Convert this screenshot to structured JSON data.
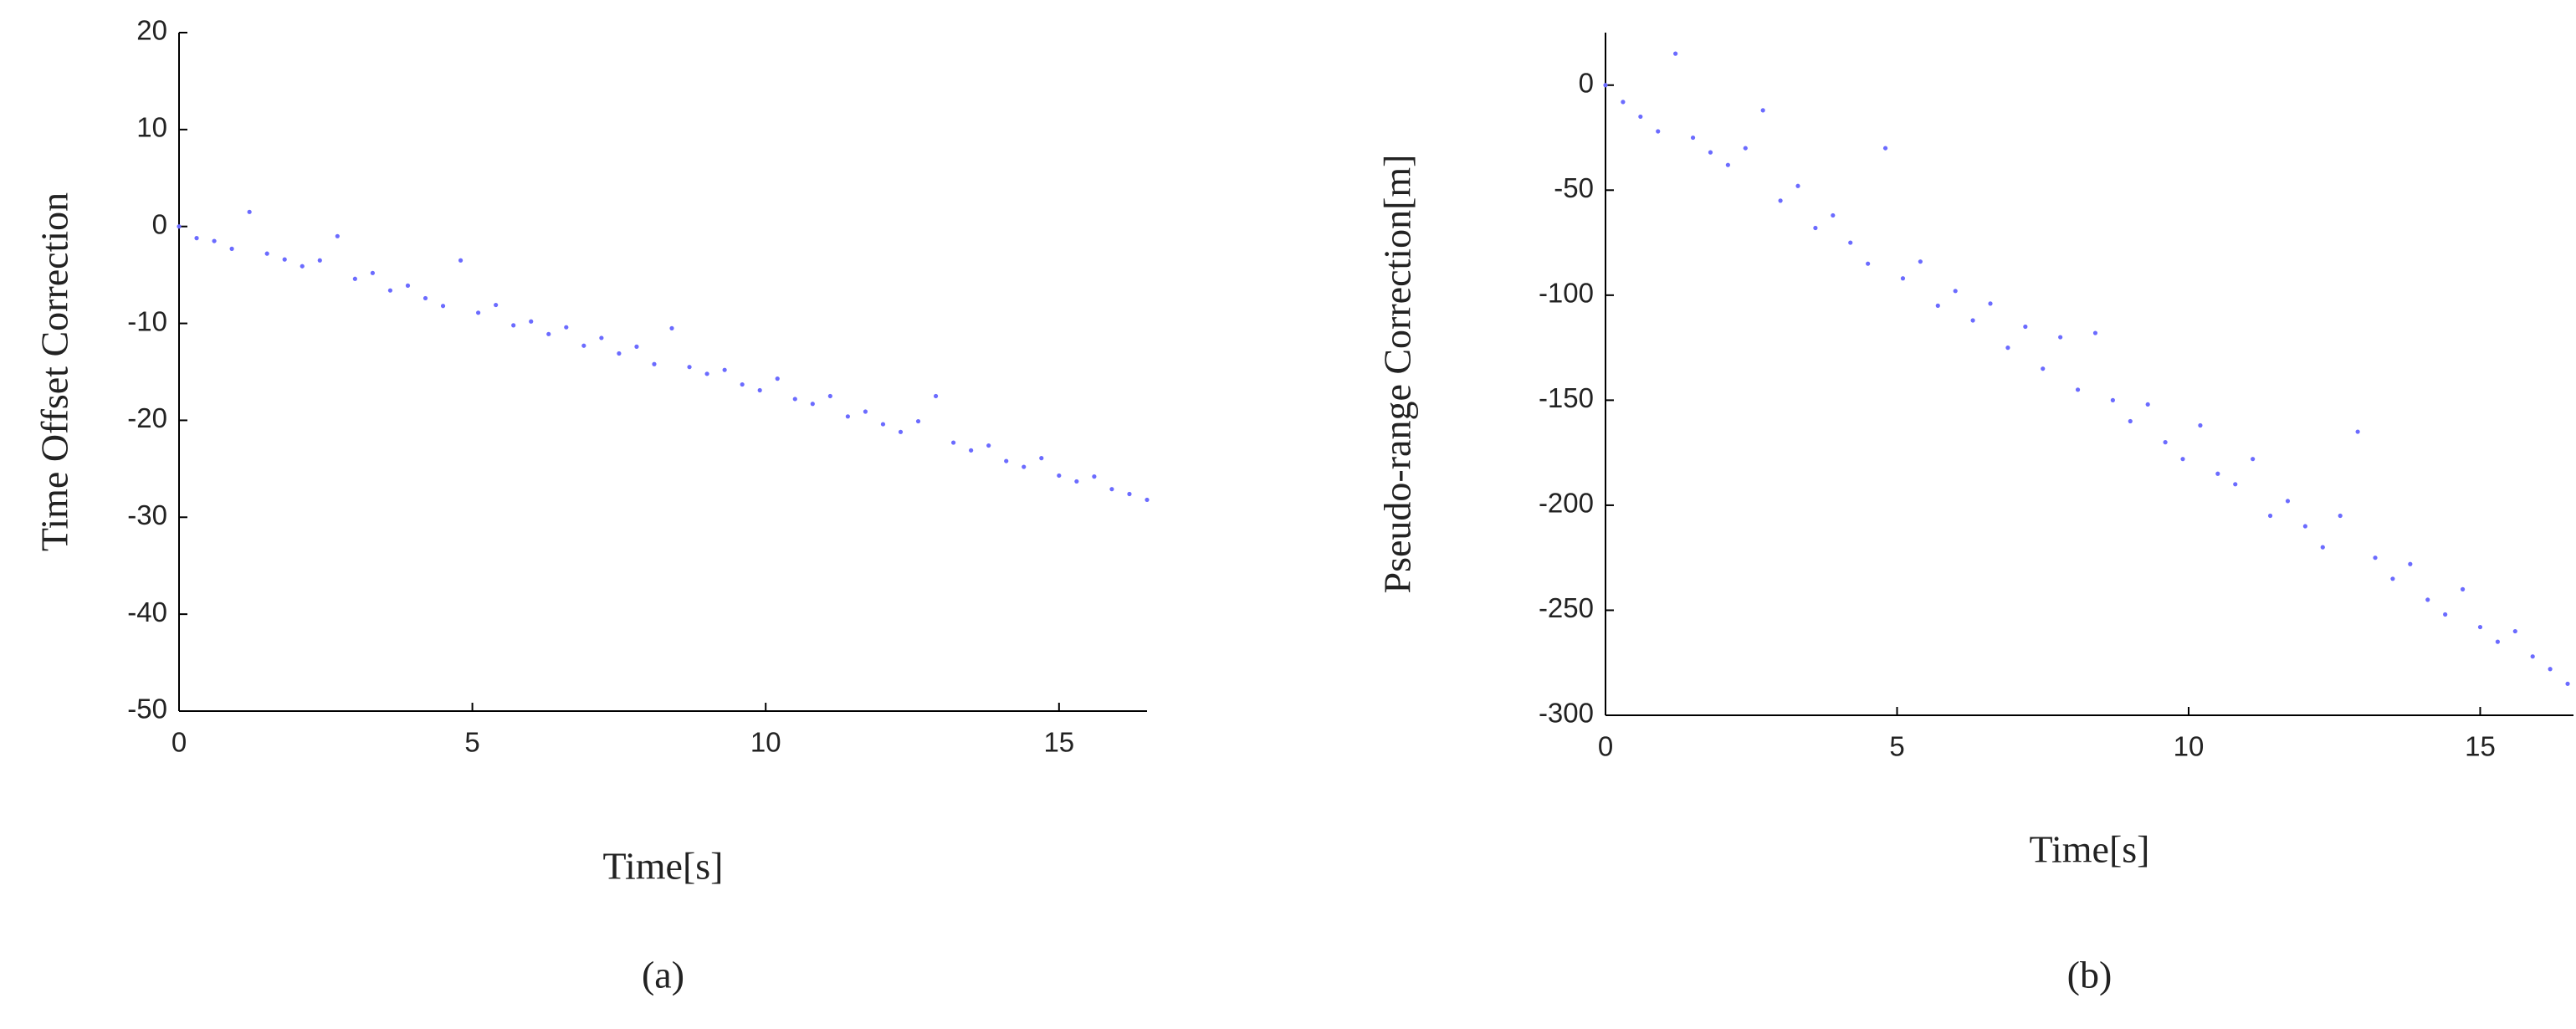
{
  "chart_data": [
    {
      "type": "scatter",
      "label": "(a)",
      "y_label": "Time Offset Correction",
      "x_label": "Time[s]",
      "xlim": [
        0,
        16.5
      ],
      "ylim": [
        -50,
        20
      ],
      "xticks": [
        0,
        5,
        10,
        15
      ],
      "yticks": [
        20,
        10,
        0,
        -10,
        -20,
        -30,
        -40,
        -50
      ],
      "series": [
        {
          "color": "#6b6bff",
          "x": [
            0,
            0.3,
            0.6,
            0.9,
            1.2,
            1.5,
            1.8,
            2.1,
            2.4,
            2.7,
            3.0,
            3.3,
            3.6,
            3.9,
            4.2,
            4.5,
            4.8,
            5.1,
            5.4,
            5.7,
            6.0,
            6.3,
            6.6,
            6.9,
            7.2,
            7.5,
            7.8,
            8.1,
            8.4,
            8.7,
            9.0,
            9.3,
            9.6,
            9.9,
            10.2,
            10.5,
            10.8,
            11.1,
            11.4,
            11.7,
            12.0,
            12.3,
            12.6,
            12.9,
            13.2,
            13.5,
            13.8,
            14.1,
            14.4,
            14.7,
            15.0,
            15.3,
            15.6,
            15.9,
            16.2,
            16.5
          ],
          "values": [
            0,
            -1.2,
            -1.5,
            -2.3,
            1.5,
            -2.8,
            -3.4,
            -4.1,
            -3.5,
            -1,
            -5.4,
            -4.8,
            -6.6,
            -6.1,
            -7.4,
            -8.2,
            -3.5,
            -8.9,
            -8.1,
            -10.2,
            -9.8,
            -11.1,
            -10.4,
            -12.3,
            -11.5,
            -13.1,
            -12.4,
            -14.2,
            -10.5,
            -14.5,
            -15.2,
            -14.8,
            -16.3,
            -16.9,
            -15.7,
            -17.8,
            -18.3,
            -17.5,
            -19.6,
            -19.1,
            -20.4,
            -21.2,
            -20.1,
            -17.5,
            -22.3,
            -23.1,
            -22.6,
            -24.2,
            -24.8,
            -23.9,
            -25.7,
            -26.3,
            -25.8,
            -27.1,
            -27.6,
            -28.2
          ]
        }
      ]
    },
    {
      "type": "scatter",
      "label": "(b)",
      "y_label": "Pseudo-range Correction[m]",
      "x_label": "Time[s]",
      "xlim": [
        0,
        16.6
      ],
      "ylim": [
        -300,
        25
      ],
      "xticks": [
        0,
        5,
        10,
        15
      ],
      "yticks": [
        0,
        -50,
        -100,
        -150,
        -200,
        -250,
        -300
      ],
      "series": [
        {
          "color": "#6b6bff",
          "x": [
            0,
            0.3,
            0.6,
            0.9,
            1.2,
            1.5,
            1.8,
            2.1,
            2.4,
            2.7,
            3.0,
            3.3,
            3.6,
            3.9,
            4.2,
            4.5,
            4.8,
            5.1,
            5.4,
            5.7,
            6.0,
            6.3,
            6.6,
            6.9,
            7.2,
            7.5,
            7.8,
            8.1,
            8.4,
            8.7,
            9.0,
            9.3,
            9.6,
            9.9,
            10.2,
            10.5,
            10.8,
            11.1,
            11.4,
            11.7,
            12.0,
            12.3,
            12.6,
            12.9,
            13.2,
            13.5,
            13.8,
            14.1,
            14.4,
            14.7,
            15.0,
            15.3,
            15.6,
            15.9,
            16.2,
            16.5
          ],
          "values": [
            0,
            -8,
            -15,
            -22,
            15,
            -25,
            -32,
            -38,
            -30,
            -12,
            -55,
            -48,
            -68,
            -62,
            -75,
            -85,
            -30,
            -92,
            -84,
            -105,
            -98,
            -112,
            -104,
            -125,
            -115,
            -135,
            -120,
            -145,
            -118,
            -150,
            -160,
            -152,
            -170,
            -178,
            -162,
            -185,
            -190,
            -178,
            -205,
            -198,
            -210,
            -220,
            -205,
            -165,
            -225,
            -235,
            -228,
            -245,
            -252,
            -240,
            -258,
            -265,
            -260,
            -272,
            -278,
            -285
          ]
        }
      ]
    }
  ]
}
